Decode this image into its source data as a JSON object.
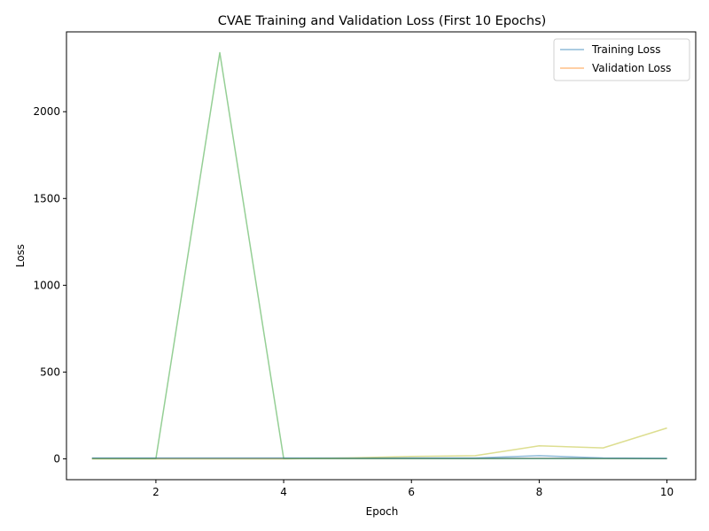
{
  "chart_data": {
    "type": "line",
    "title": "CVAE Training and Validation Loss (First 10 Epochs)",
    "xlabel": "Epoch",
    "ylabel": "Loss",
    "xlim": [
      0.6,
      10.45
    ],
    "ylim": [
      -120,
      2460
    ],
    "xticks": [
      2,
      4,
      6,
      8,
      10
    ],
    "yticks": [
      0,
      500,
      1000,
      1500,
      2000
    ],
    "grid": false,
    "legend_position": "top-right",
    "x": [
      1,
      2,
      3,
      4,
      5,
      6,
      7,
      8,
      9,
      10
    ],
    "series": [
      {
        "name": "Training Loss",
        "color": "#1f77b4",
        "legend": true,
        "values": [
          5,
          5,
          5,
          5,
          5,
          5,
          5,
          18,
          5,
          3
        ]
      },
      {
        "name": "Validation Loss",
        "color": "#ff7f0e",
        "legend": true,
        "values": [
          2,
          2,
          2,
          2,
          2,
          2,
          2,
          4,
          2,
          1
        ]
      },
      {
        "color": "#2ca02c",
        "legend": false,
        "values": [
          1,
          1,
          2340,
          1,
          1,
          1,
          1,
          1,
          1,
          1
        ]
      },
      {
        "color": "#bcbd22",
        "legend": false,
        "values": [
          0,
          0,
          0,
          0,
          5,
          14,
          18,
          75,
          63,
          178
        ]
      },
      {
        "color": "#1f77b4",
        "legend": false,
        "values": [
          3,
          3,
          3,
          3,
          3,
          3,
          3,
          3,
          3,
          2
        ]
      }
    ]
  }
}
